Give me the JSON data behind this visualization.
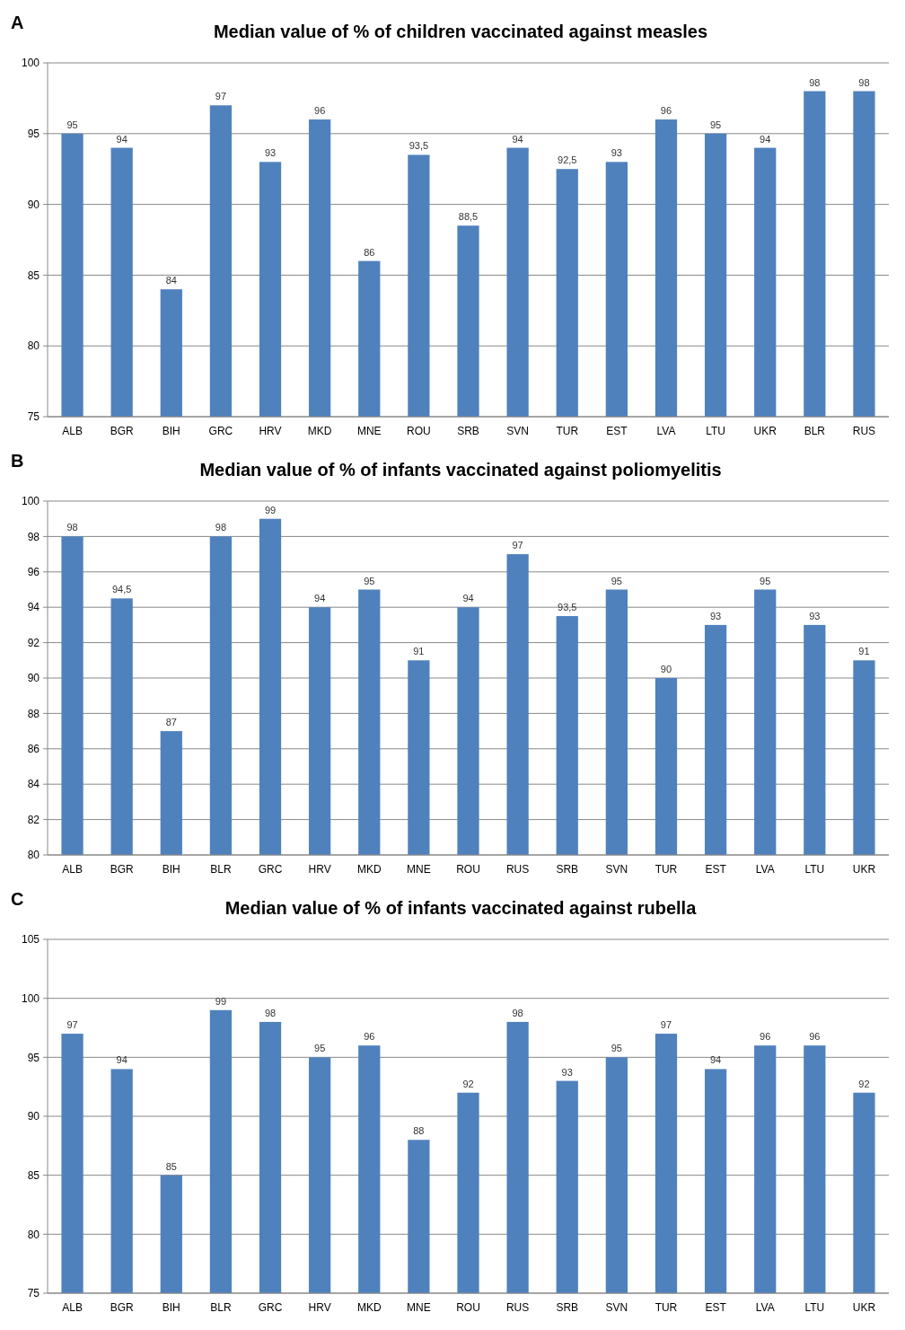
{
  "chart_data": [
    {
      "type": "bar",
      "title": "Median value of % of children vaccinated against measles",
      "annotations": [
        "A"
      ],
      "categories": [
        "ALB",
        "BGR",
        "BIH",
        "GRC",
        "HRV",
        "MKD",
        "MNE",
        "ROU",
        "SRB",
        "SVN",
        "TUR",
        "EST",
        "LVA",
        "LTU",
        "UKR",
        "BLR",
        "RUS"
      ],
      "values": [
        95,
        94,
        84,
        97,
        93,
        96,
        86,
        93.5,
        88.5,
        94,
        92.5,
        93,
        96,
        95,
        94,
        98,
        98
      ],
      "value_labels": [
        "95",
        "94",
        "84",
        "97",
        "93",
        "96",
        "86",
        "93,5",
        "88,5",
        "94",
        "92,5",
        "93",
        "96",
        "95",
        "94",
        "98",
        "98"
      ],
      "color": "#4f81bd",
      "ylim": [
        75,
        100
      ],
      "yticks": [
        75,
        80,
        85,
        90,
        95,
        100
      ],
      "grid": "y"
    },
    {
      "type": "bar",
      "title": "Median value of % of infants vaccinated against poliomyelitis",
      "annotations": [
        "B"
      ],
      "categories": [
        "ALB",
        "BGR",
        "BIH",
        "BLR",
        "GRC",
        "HRV",
        "MKD",
        "MNE",
        "ROU",
        "RUS",
        "SRB",
        "SVN",
        "TUR",
        "EST",
        "LVA",
        "LTU",
        "UKR"
      ],
      "values": [
        98,
        94.5,
        87,
        98,
        99,
        94,
        95,
        91,
        94,
        97,
        93.5,
        95,
        90,
        93,
        95,
        93,
        91
      ],
      "value_labels": [
        "98",
        "94,5",
        "87",
        "98",
        "99",
        "94",
        "95",
        "91",
        "94",
        "97",
        "93,5",
        "95",
        "90",
        "93",
        "95",
        "93",
        "91"
      ],
      "color": "#4f81bd",
      "ylim": [
        80,
        100
      ],
      "yticks": [
        80,
        82,
        84,
        86,
        88,
        90,
        92,
        94,
        96,
        98,
        100
      ],
      "grid": "y"
    },
    {
      "type": "bar",
      "title": "Median value of % of infants vaccinated against rubella",
      "annotations": [
        "C"
      ],
      "categories": [
        "ALB",
        "BGR",
        "BIH",
        "BLR",
        "GRC",
        "HRV",
        "MKD",
        "MNE",
        "ROU",
        "RUS",
        "SRB",
        "SVN",
        "TUR",
        "EST",
        "LVA",
        "LTU",
        "UKR"
      ],
      "values": [
        97,
        94,
        85,
        99,
        98,
        95,
        96,
        88,
        92,
        98,
        93,
        95,
        97,
        94,
        96,
        96,
        92
      ],
      "value_labels": [
        "97",
        "94",
        "85",
        "99",
        "98",
        "95",
        "96",
        "88",
        "92",
        "98",
        "93",
        "95",
        "97",
        "94",
        "96",
        "96",
        "92"
      ],
      "color": "#4f81bd",
      "ylim": [
        75,
        105
      ],
      "yticks": [
        75,
        80,
        85,
        90,
        95,
        100,
        105
      ],
      "grid": "y"
    }
  ]
}
